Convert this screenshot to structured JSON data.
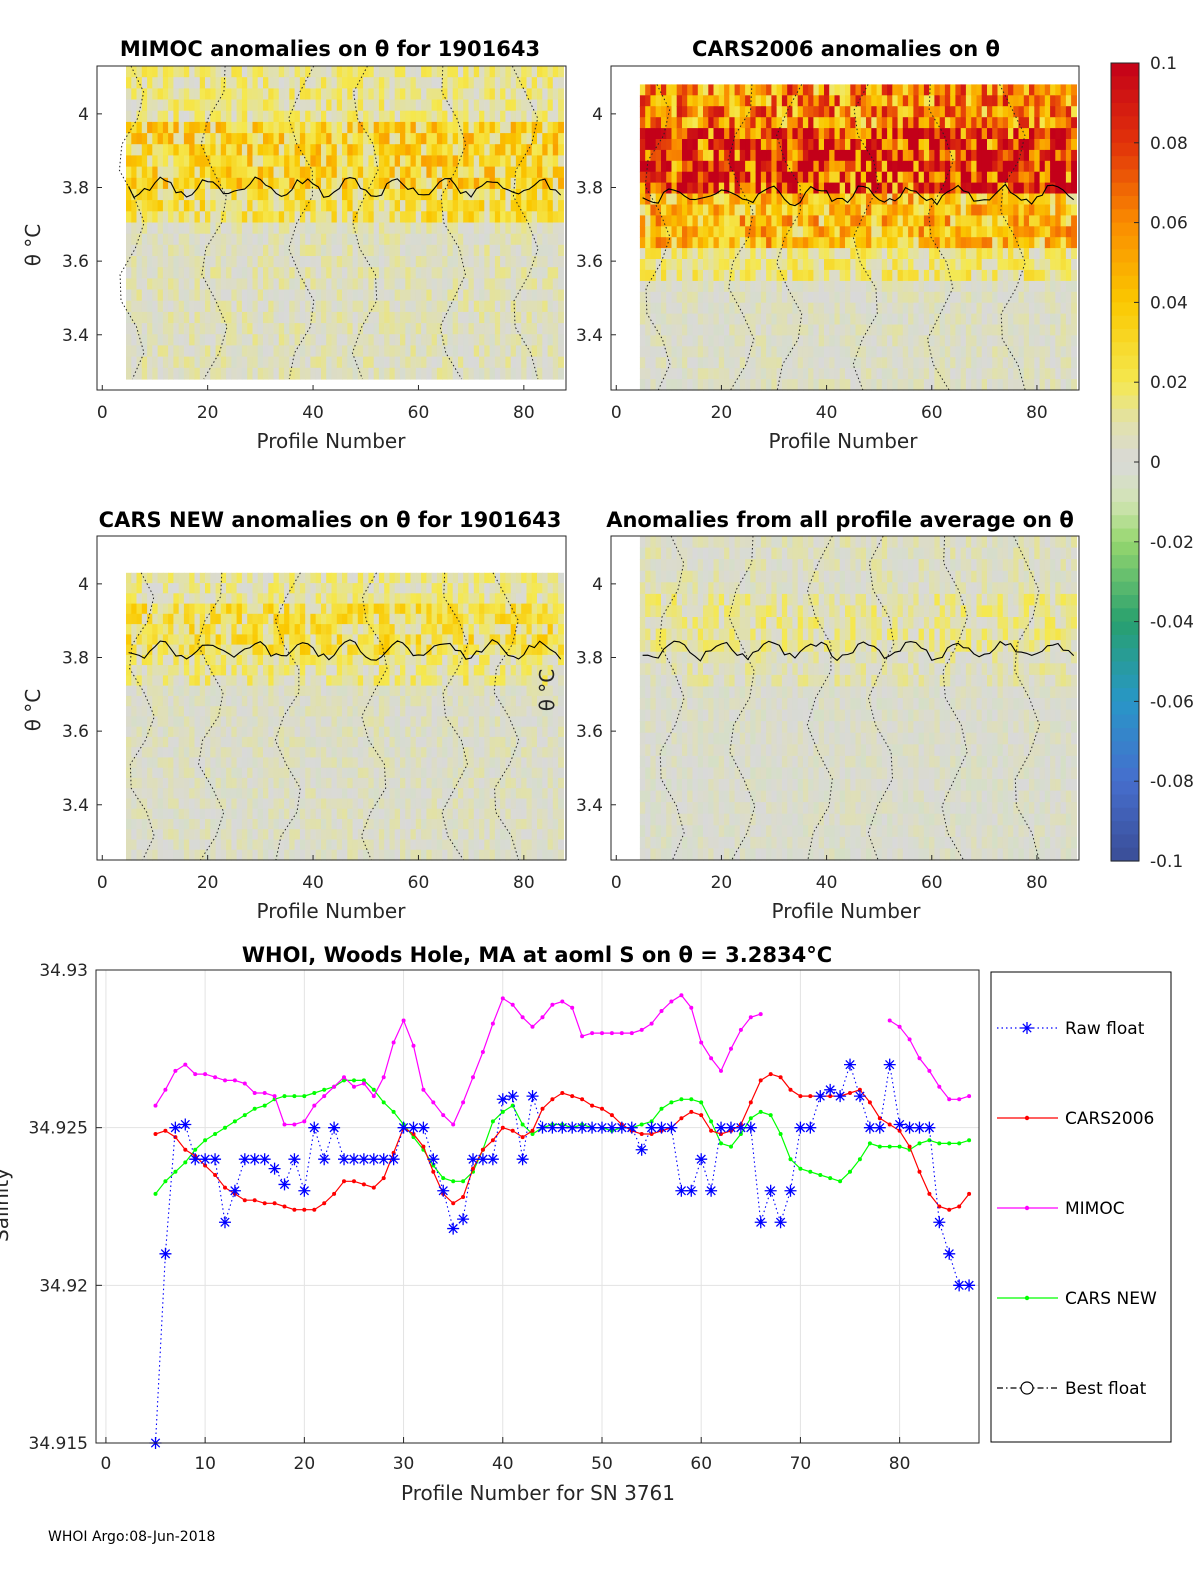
{
  "footer": "WHOI Argo:08-Jun-2018",
  "colors": {
    "raw_float": "#0000ff",
    "cars2006": "#ff0000",
    "mimoc": "#ff00ff",
    "cars_new": "#00ff00",
    "best_float": "#000000",
    "panel_fill": "#d9d9d9"
  },
  "colorbar": {
    "ticks": [
      "0.1",
      "0.08",
      "0.06",
      "0.04",
      "0.02",
      "0",
      "-0.02",
      "-0.04",
      "-0.06",
      "-0.08",
      "-0.1"
    ],
    "range": [
      -0.1,
      0.1
    ]
  },
  "chart_data": [
    {
      "type": "heatmap",
      "title": "MIMOC anomalies on θ  for 1901643",
      "xlabel": "Profile Number",
      "ylabel": "θ °C",
      "xticks": [
        "0",
        "20",
        "40",
        "60",
        "80"
      ],
      "yticks": [
        "3.4",
        "3.6",
        "3.8",
        "4"
      ],
      "xlim": [
        -1,
        88
      ],
      "ylim": [
        3.25,
        4.13
      ],
      "band_mean_anomaly": [
        0.012,
        0.03,
        0.022,
        0.005
      ],
      "band_edges": [
        4.13,
        3.98,
        3.8,
        3.7,
        3.28
      ]
    },
    {
      "type": "heatmap",
      "title": "CARS2006 anomalies on θ",
      "xlabel": "Profile Number",
      "ylabel": "",
      "xticks": [
        "0",
        "20",
        "40",
        "60",
        "80"
      ],
      "yticks": [
        "3.4",
        "3.6",
        "3.8",
        "4"
      ],
      "xlim": [
        -1,
        88
      ],
      "ylim": [
        3.25,
        4.13
      ],
      "band_mean_anomaly": [
        0.055,
        0.085,
        0.04,
        0.015,
        0.003
      ],
      "band_edges": [
        4.08,
        3.95,
        3.78,
        3.65,
        3.55,
        3.25
      ]
    },
    {
      "type": "heatmap",
      "title": "CARS NEW anomalies on θ for 1901643",
      "xlabel": "Profile Number",
      "ylabel": "θ °C",
      "xticks": [
        "0",
        "20",
        "40",
        "60",
        "80"
      ],
      "yticks": [
        "3.4",
        "3.6",
        "3.8",
        "4"
      ],
      "xlim": [
        -1,
        88
      ],
      "ylim": [
        3.25,
        4.13
      ],
      "band_mean_anomaly": [
        0.01,
        0.022,
        0.012,
        0.003
      ],
      "band_edges": [
        4.03,
        3.95,
        3.82,
        3.72,
        3.25
      ]
    },
    {
      "type": "heatmap",
      "title": "Anomalies from all profile average on θ",
      "xlabel": "Profile Number",
      "ylabel": "θ °C",
      "xticks": [
        "0",
        "20",
        "40",
        "60",
        "80"
      ],
      "yticks": [
        "3.4",
        "3.6",
        "3.8",
        "4"
      ],
      "xlim": [
        -1,
        88
      ],
      "ylim": [
        3.25,
        4.13
      ],
      "band_mean_anomaly": [
        0.004,
        0.01,
        0.006,
        0.001
      ],
      "band_edges": [
        4.13,
        3.98,
        3.82,
        3.72,
        3.25
      ]
    },
    {
      "type": "line",
      "title": "WHOI, Woods Hole, MA at aoml S on θ = 3.2834°C",
      "xlabel": "Profile Number for SN 3761",
      "ylabel": "Salinity",
      "xlim": [
        -1,
        88
      ],
      "ylim": [
        34.915,
        34.93
      ],
      "xticks": [
        "0",
        "10",
        "20",
        "30",
        "40",
        "50",
        "60",
        "70",
        "80"
      ],
      "yticks": [
        "34.915",
        "34.92",
        "34.925",
        "34.93"
      ],
      "legend": [
        "Raw float",
        "CARS2006",
        "MIMOC",
        "CARS NEW",
        "Best float"
      ],
      "series": [
        {
          "name": "Raw float",
          "x": [
            5,
            6,
            7,
            8,
            9,
            10,
            11,
            12,
            13,
            14,
            15,
            16,
            17,
            18,
            19,
            20,
            21,
            22,
            23,
            24,
            25,
            26,
            27,
            28,
            29,
            30,
            31,
            32,
            33,
            34,
            35,
            36,
            37,
            38,
            39,
            40,
            41,
            42,
            43,
            44,
            45,
            46,
            47,
            48,
            49,
            50,
            51,
            52,
            53,
            54,
            55,
            56,
            57,
            58,
            59,
            60,
            61,
            62,
            63,
            64,
            65,
            66,
            67,
            68,
            69,
            70,
            71,
            72,
            73,
            74,
            75,
            76,
            77,
            78,
            79,
            80,
            81,
            82,
            83,
            84,
            85,
            86,
            87
          ],
          "values": [
            34.915,
            34.921,
            34.925,
            34.9251,
            34.924,
            34.924,
            34.924,
            34.922,
            34.923,
            34.924,
            34.924,
            34.924,
            34.9237,
            34.9232,
            34.924,
            34.923,
            34.925,
            34.924,
            34.925,
            34.924,
            34.924,
            34.924,
            34.924,
            34.924,
            34.924,
            34.925,
            34.925,
            34.925,
            34.924,
            34.923,
            34.9218,
            34.9221,
            34.924,
            34.924,
            34.924,
            34.9259,
            34.926,
            34.924,
            34.926,
            34.925,
            34.925,
            34.925,
            34.925,
            34.925,
            34.925,
            34.925,
            34.925,
            34.925,
            34.925,
            34.9243,
            34.925,
            34.925,
            34.925,
            34.923,
            34.923,
            34.924,
            34.923,
            34.925,
            34.925,
            34.925,
            34.925,
            34.922,
            34.923,
            34.922,
            34.923,
            34.925,
            34.925,
            34.926,
            34.9262,
            34.926,
            34.927,
            34.926,
            34.925,
            34.925,
            34.927,
            34.9251,
            34.925,
            34.925,
            34.925,
            34.922,
            34.921,
            34.92,
            34.92
          ]
        },
        {
          "name": "CARS2006",
          "x": [
            5,
            6,
            7,
            8,
            9,
            10,
            11,
            12,
            13,
            14,
            15,
            16,
            17,
            18,
            19,
            20,
            21,
            22,
            23,
            24,
            25,
            26,
            27,
            28,
            29,
            30,
            31,
            32,
            33,
            34,
            35,
            36,
            37,
            38,
            39,
            40,
            41,
            42,
            43,
            44,
            45,
            46,
            47,
            48,
            49,
            50,
            51,
            52,
            53,
            54,
            55,
            56,
            57,
            58,
            59,
            60,
            61,
            62,
            63,
            64,
            65,
            66,
            67,
            68,
            69,
            70,
            71,
            72,
            73,
            74,
            75,
            76,
            77,
            78,
            79,
            80,
            81,
            82,
            83,
            84,
            85,
            86,
            87
          ],
          "values": [
            34.9248,
            34.9249,
            34.9247,
            34.9243,
            34.9241,
            34.9238,
            34.9235,
            34.9231,
            34.9229,
            34.9227,
            34.9227,
            34.9226,
            34.9226,
            34.9225,
            34.9224,
            34.9224,
            34.9224,
            34.9226,
            34.9229,
            34.9233,
            34.9233,
            34.9232,
            34.9231,
            34.9234,
            34.9242,
            34.925,
            34.9248,
            34.9244,
            34.9236,
            34.9229,
            34.9226,
            34.9228,
            34.9237,
            34.9243,
            34.9246,
            34.925,
            34.9249,
            34.9247,
            34.9249,
            34.9256,
            34.9259,
            34.9261,
            34.926,
            34.9259,
            34.9257,
            34.9256,
            34.9254,
            34.9251,
            34.9249,
            34.9248,
            34.9248,
            34.9249,
            34.925,
            34.9253,
            34.9255,
            34.9254,
            34.9249,
            34.9248,
            34.9249,
            34.9251,
            34.9258,
            34.9265,
            34.9267,
            34.9266,
            34.9262,
            34.926,
            34.926,
            34.926,
            34.926,
            34.926,
            34.9261,
            34.9262,
            34.9258,
            34.9253,
            34.9251,
            34.9249,
            34.9244,
            34.9236,
            34.9229,
            34.9225,
            34.9224,
            34.9225,
            34.9229
          ]
        },
        {
          "name": "MIMOC",
          "x": [
            5,
            6,
            7,
            8,
            9,
            10,
            11,
            12,
            13,
            14,
            15,
            16,
            17,
            18,
            19,
            20,
            21,
            22,
            23,
            24,
            25,
            26,
            27,
            28,
            29,
            30,
            31,
            32,
            33,
            34,
            35,
            36,
            37,
            38,
            39,
            40,
            41,
            42,
            43,
            44,
            45,
            46,
            47,
            48,
            49,
            50,
            51,
            52,
            53,
            54,
            55,
            56,
            57,
            58,
            59,
            60,
            61,
            62,
            63,
            64,
            65,
            66
          ],
          "values": [
            34.9257,
            34.9262,
            34.9268,
            34.927,
            34.9267,
            34.9267,
            34.9266,
            34.9265,
            34.9265,
            34.9264,
            34.9261,
            34.9261,
            34.926,
            34.9251,
            34.9251,
            34.9252,
            34.9257,
            34.926,
            34.9263,
            34.9266,
            34.9263,
            34.9264,
            34.926,
            34.9266,
            34.9277,
            34.9284,
            34.9276,
            34.9262,
            34.9258,
            34.9254,
            34.9251,
            34.9258,
            34.9266,
            34.9274,
            34.9283,
            34.9291,
            34.9289,
            34.9285,
            34.9282,
            34.9285,
            34.9289,
            34.929,
            34.9288,
            34.9279,
            34.928,
            34.928,
            34.928,
            34.928,
            34.928,
            34.9281,
            34.9283,
            34.9287,
            34.929,
            34.9292,
            34.9288,
            34.9277,
            34.9272,
            34.9268,
            34.9275,
            34.9281,
            34.9285,
            34.9286
          ]
        },
        {
          "name": "MIMOC",
          "x": [
            79,
            80,
            81,
            82,
            83,
            84,
            85,
            86,
            87
          ],
          "values": [
            34.9284,
            34.9282,
            34.9278,
            34.9272,
            34.9268,
            34.9263,
            34.9259,
            34.9259,
            34.926
          ]
        },
        {
          "name": "CARS NEW",
          "x": [
            5,
            6,
            7,
            8,
            9,
            10,
            11,
            12,
            13,
            14,
            15,
            16,
            17,
            18,
            19,
            20,
            21,
            22,
            23,
            24,
            25,
            26,
            27,
            28,
            29,
            30,
            31,
            32,
            33,
            34,
            35,
            36,
            37,
            38,
            39,
            40,
            41,
            42,
            43,
            44,
            45,
            46,
            47,
            48,
            49,
            50,
            51,
            52,
            53,
            54,
            55,
            56,
            57,
            58,
            59,
            60,
            61,
            62,
            63,
            64,
            65,
            66,
            67,
            68,
            69,
            70,
            71,
            72,
            73,
            74,
            75,
            76,
            77,
            78,
            79,
            80,
            81,
            82,
            83,
            84,
            85,
            86,
            87
          ],
          "values": [
            34.9229,
            34.9233,
            34.9236,
            34.9239,
            34.9243,
            34.9246,
            34.9248,
            34.925,
            34.9252,
            34.9254,
            34.9256,
            34.9257,
            34.9259,
            34.926,
            34.926,
            34.926,
            34.9261,
            34.9262,
            34.9263,
            34.9265,
            34.9265,
            34.9265,
            34.9262,
            34.9258,
            34.9255,
            34.9251,
            34.9247,
            34.9243,
            34.9238,
            34.9234,
            34.9233,
            34.9233,
            34.9236,
            34.9243,
            34.9252,
            34.9255,
            34.9257,
            34.9251,
            34.9248,
            34.925,
            34.9251,
            34.9251,
            34.925,
            34.9251,
            34.925,
            34.925,
            34.9249,
            34.925,
            34.925,
            34.9251,
            34.9252,
            34.9256,
            34.9258,
            34.9259,
            34.9259,
            34.9258,
            34.9252,
            34.9245,
            34.9244,
            34.9248,
            34.9253,
            34.9255,
            34.9254,
            34.9248,
            34.924,
            34.9237,
            34.9236,
            34.9235,
            34.9234,
            34.9233,
            34.9236,
            34.924,
            34.9245,
            34.9244,
            34.9244,
            34.9244,
            34.9243,
            34.9245,
            34.9246,
            34.9245,
            34.9245,
            34.9245,
            34.9246
          ]
        }
      ]
    }
  ]
}
